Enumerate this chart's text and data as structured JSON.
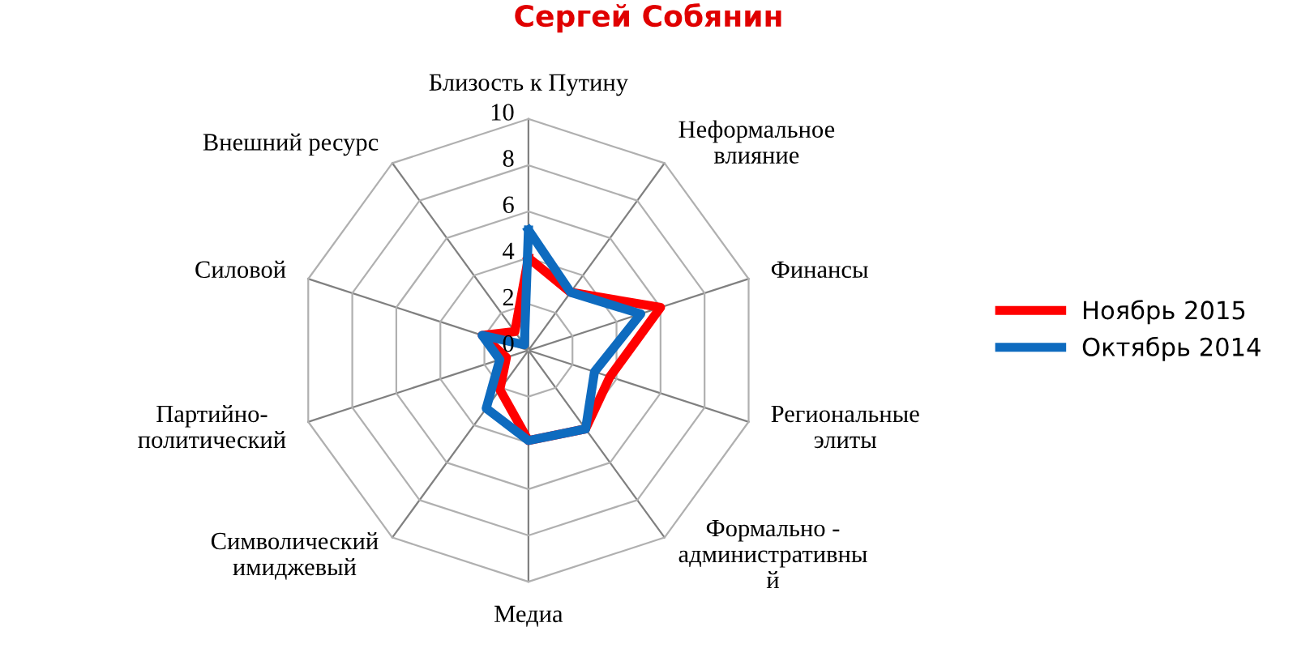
{
  "chart_data": {
    "type": "radar",
    "title": "Сергей Собянин",
    "categories": [
      "Близость к Путину",
      "Неформальное\nвлияние",
      "Финансы",
      "Региональные\nэлиты",
      "Формально -\nадминистративны\nй",
      "Медиа",
      "Символический\nимиджевый",
      "Партийно-\nполитический",
      "Силовой",
      "Внешний ресурс"
    ],
    "series": [
      {
        "name": "Ноябрь 2015",
        "color": "#ff0000",
        "values": [
          4.0,
          3.1,
          6.0,
          3.7,
          4.2,
          3.9,
          2.1,
          1.0,
          2.1,
          1.0
        ]
      },
      {
        "name": "Октябрь 2014",
        "color": "#0e6bbf",
        "values": [
          5.2,
          3.1,
          5.1,
          3.0,
          4.2,
          3.9,
          3.1,
          1.3,
          2.1,
          0.3
        ]
      }
    ],
    "ylim": [
      0,
      10
    ],
    "yticks": [
      0,
      2,
      4,
      6,
      8,
      10
    ],
    "grid": true,
    "legend": "right"
  }
}
